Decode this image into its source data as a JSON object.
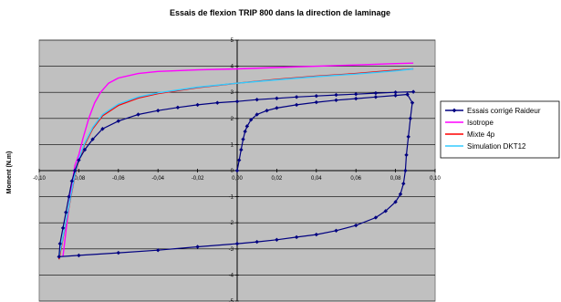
{
  "chart_data": {
    "type": "line",
    "title": "Essais de flexion TRIP 800 dans la direction de laminage",
    "xlabel": "",
    "ylabel": "Moment (N.m)",
    "xlim": [
      -0.1,
      0.1
    ],
    "ylim": [
      -5,
      5
    ],
    "x_ticks": [
      "-0,10",
      "-0,08",
      "-0,06",
      "-0,04",
      "-0,02",
      "0,00",
      "0,02",
      "0,04",
      "0,06",
      "0,08",
      "0,10"
    ],
    "y_ticks": [
      "5",
      "4",
      "3",
      "2",
      "1",
      "0",
      "-1",
      "-2",
      "-3",
      "-4",
      "-5"
    ],
    "grid": true,
    "legend_position": "right",
    "plot_background": "#c0c0c0",
    "series": [
      {
        "name": "Essais corrigé Raideur",
        "color": "#000080",
        "marker": "diamond",
        "points": [
          [
            0.0,
            0.0
          ],
          [
            0.001,
            0.4
          ],
          [
            0.002,
            0.8
          ],
          [
            0.003,
            1.2
          ],
          [
            0.004,
            1.5
          ],
          [
            0.005,
            1.7
          ],
          [
            0.007,
            1.95
          ],
          [
            0.01,
            2.15
          ],
          [
            0.015,
            2.3
          ],
          [
            0.02,
            2.4
          ],
          [
            0.03,
            2.52
          ],
          [
            0.04,
            2.62
          ],
          [
            0.05,
            2.7
          ],
          [
            0.06,
            2.76
          ],
          [
            0.07,
            2.82
          ],
          [
            0.08,
            2.88
          ],
          [
            0.086,
            2.92
          ],
          [
            0.0885,
            2.6
          ],
          [
            0.0875,
            2.0
          ],
          [
            0.0865,
            1.3
          ],
          [
            0.0855,
            0.6
          ],
          [
            0.085,
            0.0
          ],
          [
            0.084,
            -0.5
          ],
          [
            0.0825,
            -0.9
          ],
          [
            0.08,
            -1.2
          ],
          [
            0.075,
            -1.55
          ],
          [
            0.07,
            -1.8
          ],
          [
            0.06,
            -2.1
          ],
          [
            0.05,
            -2.3
          ],
          [
            0.04,
            -2.45
          ],
          [
            0.03,
            -2.55
          ],
          [
            0.02,
            -2.65
          ],
          [
            0.01,
            -2.73
          ],
          [
            0.0,
            -2.8
          ],
          [
            -0.02,
            -2.92
          ],
          [
            -0.04,
            -3.05
          ],
          [
            -0.06,
            -3.15
          ],
          [
            -0.08,
            -3.25
          ],
          [
            -0.09,
            -3.3
          ],
          [
            -0.0895,
            -2.8
          ],
          [
            -0.088,
            -2.2
          ],
          [
            -0.0865,
            -1.6
          ],
          [
            -0.085,
            -1.0
          ],
          [
            -0.0835,
            -0.4
          ],
          [
            -0.082,
            0.0
          ],
          [
            -0.08,
            0.4
          ],
          [
            -0.077,
            0.8
          ],
          [
            -0.073,
            1.2
          ],
          [
            -0.068,
            1.6
          ],
          [
            -0.06,
            1.9
          ],
          [
            -0.05,
            2.15
          ],
          [
            -0.04,
            2.3
          ],
          [
            -0.03,
            2.42
          ],
          [
            -0.02,
            2.52
          ],
          [
            -0.01,
            2.6
          ],
          [
            0.0,
            2.65
          ],
          [
            0.01,
            2.72
          ],
          [
            0.02,
            2.77
          ],
          [
            0.03,
            2.82
          ],
          [
            0.04,
            2.86
          ],
          [
            0.05,
            2.9
          ],
          [
            0.06,
            2.93
          ],
          [
            0.07,
            2.97
          ],
          [
            0.08,
            3.0
          ],
          [
            0.089,
            3.02
          ]
        ]
      },
      {
        "name": "Isotrope",
        "color": "#ff00ff",
        "marker": "none",
        "points": [
          [
            -0.088,
            -3.3
          ],
          [
            -0.086,
            -2.0
          ],
          [
            -0.084,
            -0.8
          ],
          [
            -0.082,
            0.2
          ],
          [
            -0.08,
            0.6
          ],
          [
            -0.078,
            1.2
          ],
          [
            -0.075,
            2.0
          ],
          [
            -0.072,
            2.6
          ],
          [
            -0.069,
            3.0
          ],
          [
            -0.065,
            3.35
          ],
          [
            -0.06,
            3.55
          ],
          [
            -0.05,
            3.72
          ],
          [
            -0.04,
            3.8
          ],
          [
            -0.02,
            3.86
          ],
          [
            0.0,
            3.9
          ],
          [
            0.02,
            3.95
          ],
          [
            0.04,
            4.0
          ],
          [
            0.06,
            4.05
          ],
          [
            0.08,
            4.1
          ],
          [
            0.089,
            4.12
          ]
        ]
      },
      {
        "name": "Mixte 4p",
        "color": "#ff0000",
        "marker": "none",
        "points": [
          [
            -0.09,
            -3.4
          ],
          [
            -0.088,
            -2.6
          ],
          [
            -0.086,
            -1.8
          ],
          [
            -0.084,
            -1.0
          ],
          [
            -0.082,
            -0.2
          ],
          [
            -0.08,
            0.4
          ],
          [
            -0.077,
            1.0
          ],
          [
            -0.073,
            1.6
          ],
          [
            -0.068,
            2.1
          ],
          [
            -0.06,
            2.5
          ],
          [
            -0.05,
            2.78
          ],
          [
            -0.04,
            2.95
          ],
          [
            -0.02,
            3.18
          ],
          [
            0.0,
            3.35
          ],
          [
            0.02,
            3.5
          ],
          [
            0.04,
            3.62
          ],
          [
            0.06,
            3.72
          ],
          [
            0.08,
            3.85
          ],
          [
            0.089,
            3.9
          ]
        ]
      },
      {
        "name": "Simulation DKT12",
        "color": "#33ccff",
        "marker": "none",
        "points": [
          [
            -0.09,
            -3.3
          ],
          [
            -0.088,
            -2.55
          ],
          [
            -0.086,
            -1.75
          ],
          [
            -0.084,
            -0.95
          ],
          [
            -0.082,
            -0.15
          ],
          [
            -0.08,
            0.45
          ],
          [
            -0.077,
            1.05
          ],
          [
            -0.073,
            1.65
          ],
          [
            -0.068,
            2.15
          ],
          [
            -0.06,
            2.55
          ],
          [
            -0.05,
            2.82
          ],
          [
            -0.04,
            2.98
          ],
          [
            -0.02,
            3.2
          ],
          [
            0.0,
            3.35
          ],
          [
            0.02,
            3.48
          ],
          [
            0.04,
            3.6
          ],
          [
            0.06,
            3.7
          ],
          [
            0.08,
            3.82
          ],
          [
            0.089,
            3.9
          ]
        ]
      }
    ]
  }
}
